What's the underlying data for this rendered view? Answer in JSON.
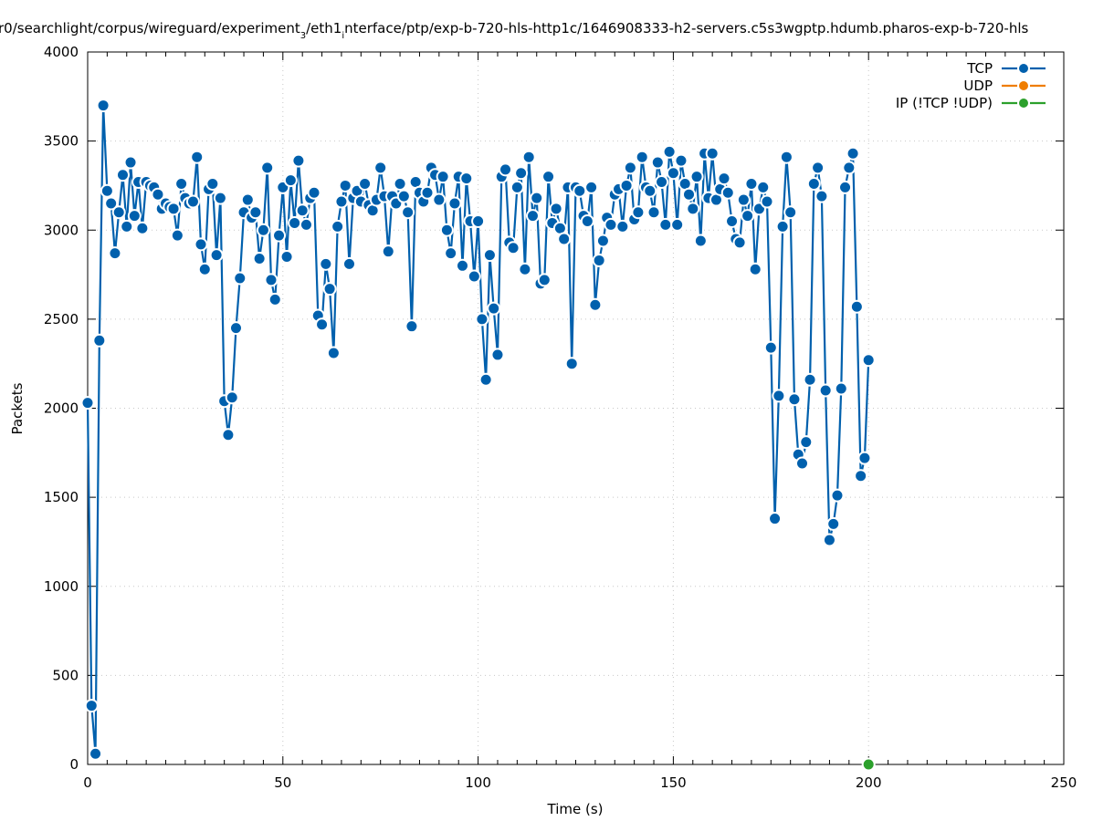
{
  "chart_data": {
    "type": "line",
    "title": "r0/searchlight/corpus/wireguard/experiment",
    "title_parts": [
      "r0/searchlight/corpus/wireguard/experiment",
      "3",
      "/eth1",
      "i",
      "nterface/ptp/exp-b-720-hls-http1c/1646908333-h2-servers.c5s3wgptp.hdumb.pharos-exp-b-720-hls"
    ],
    "xlabel": "Time (s)",
    "ylabel": "Packets",
    "xlim": [
      0,
      250
    ],
    "ylim": [
      0,
      4000
    ],
    "x_ticks": [
      0,
      50,
      100,
      150,
      200,
      250
    ],
    "y_ticks": [
      0,
      500,
      1000,
      1500,
      2000,
      2500,
      3000,
      3500,
      4000
    ],
    "grid": true,
    "legend_position": "top-right",
    "series": [
      {
        "name": "TCP",
        "color": "#0060ad",
        "x": [
          0,
          1,
          2,
          3,
          4,
          5,
          6,
          7,
          8,
          9,
          10,
          11,
          12,
          13,
          14,
          15,
          16,
          17,
          18,
          19,
          20,
          21,
          22,
          23,
          24,
          25,
          26,
          27,
          28,
          29,
          30,
          31,
          32,
          33,
          34,
          35,
          36,
          37,
          38,
          39,
          40,
          41,
          42,
          43,
          44,
          45,
          46,
          47,
          48,
          49,
          50,
          51,
          52,
          53,
          54,
          55,
          56,
          57,
          58,
          59,
          60,
          61,
          62,
          63,
          64,
          65,
          66,
          67,
          68,
          69,
          70,
          71,
          72,
          73,
          74,
          75,
          76,
          77,
          78,
          79,
          80,
          81,
          82,
          83,
          84,
          85,
          86,
          87,
          88,
          89,
          90,
          91,
          92,
          93,
          94,
          95,
          96,
          97,
          98,
          99,
          100,
          101,
          102,
          103,
          104,
          105,
          106,
          107,
          108,
          109,
          110,
          111,
          112,
          113,
          114,
          115,
          116,
          117,
          118,
          119,
          120,
          121,
          122,
          123,
          124,
          125,
          126,
          127,
          128,
          129,
          130,
          131,
          132,
          133,
          134,
          135,
          136,
          137,
          138,
          139,
          140,
          141,
          142,
          143,
          144,
          145,
          146,
          147,
          148,
          149,
          150,
          151,
          152,
          153,
          154,
          155,
          156,
          157,
          158,
          159,
          160,
          161,
          162,
          163,
          164,
          165,
          166,
          167,
          168,
          169,
          170,
          171,
          172,
          173,
          174,
          175,
          176,
          177,
          178,
          179,
          180,
          181,
          182,
          183,
          184,
          185,
          186,
          187,
          188,
          189,
          190,
          191,
          192,
          193,
          194,
          195,
          196,
          197,
          198,
          199,
          200
        ],
        "values": [
          2030,
          330,
          60,
          2380,
          3700,
          3220,
          3150,
          2870,
          3100,
          3310,
          3020,
          3380,
          3080,
          3270,
          3010,
          3270,
          3250,
          3240,
          3200,
          3120,
          3150,
          3130,
          3120,
          2970,
          3260,
          3180,
          3150,
          3160,
          3410,
          2920,
          2780,
          3230,
          3260,
          2860,
          3180,
          2040,
          1850,
          2060,
          2450,
          2730,
          3100,
          3170,
          3070,
          3100,
          2840,
          3000,
          3350,
          2720,
          2610,
          2970,
          3240,
          2850,
          3280,
          3040,
          3390,
          3110,
          3030,
          3180,
          3210,
          2520,
          2470,
          2810,
          2670,
          2310,
          3020,
          3160,
          3250,
          2810,
          3180,
          3220,
          3160,
          3260,
          3140,
          3110,
          3170,
          3350,
          3190,
          2880,
          3190,
          3150,
          3260,
          3190,
          3100,
          2460,
          3270,
          3210,
          3160,
          3210,
          3350,
          3310,
          3170,
          3300,
          3000,
          2870,
          3150,
          3300,
          2800,
          3290,
          3050,
          2740,
          3050,
          2500,
          2160,
          2860,
          2560,
          2300,
          3300,
          3340,
          2930,
          2900,
          3240,
          3320,
          2780,
          3410,
          3080,
          3180,
          2700,
          2720,
          3300,
          3040,
          3120,
          3010,
          2950,
          3240,
          2250,
          3240,
          3220,
          3080,
          3050,
          3240,
          2580,
          2830,
          2940,
          3070,
          3030,
          3200,
          3230,
          3020,
          3250,
          3350,
          3060,
          3100,
          3410,
          3240,
          3220,
          3100,
          3380,
          3270,
          3030,
          3440,
          3320,
          3030,
          3390,
          3260,
          3200,
          3120,
          3300,
          2940,
          3430,
          3180,
          3430,
          3170,
          3230,
          3290,
          3210,
          3050,
          2950,
          2930,
          3170,
          3080,
          3260,
          2780,
          3120,
          3240,
          3160,
          2340,
          1380,
          2070,
          3020,
          3410,
          3100,
          2050,
          1740,
          1690,
          1810,
          2160,
          3260,
          3350,
          3190,
          2100,
          1260,
          1350,
          1510,
          2110,
          3240,
          3350,
          3430,
          2570,
          1620,
          1720,
          2270
        ]
      },
      {
        "name": "UDP",
        "color": "#ef7d00",
        "x": [],
        "values": []
      },
      {
        "name": "IP (!TCP  !UDP)",
        "color": "#2ca02c",
        "x": [
          200
        ],
        "values": [
          0
        ]
      }
    ]
  }
}
